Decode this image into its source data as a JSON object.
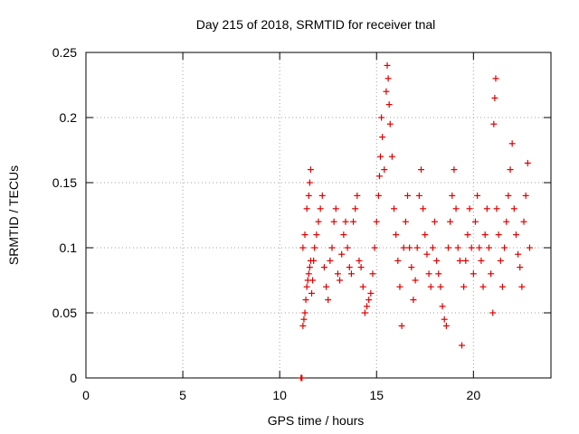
{
  "chart_data": {
    "type": "scatter",
    "title": "Day 215 of 2018, SRMTID for receiver tnal",
    "xlabel": "GPS time / hours",
    "ylabel": "SRMTID / TECUs",
    "xlim": [
      0,
      24
    ],
    "ylim": [
      0,
      0.25
    ],
    "xticks": [
      0,
      5,
      10,
      15,
      20
    ],
    "xtick_labels": [
      "0",
      "5",
      "10",
      "15",
      "20"
    ],
    "yticks": [
      0,
      0.05,
      0.1,
      0.15,
      0.2,
      0.25
    ],
    "ytick_labels": [
      "0",
      "0.05",
      "0.1",
      "0.15",
      "0.2",
      "0.25"
    ],
    "grid": true,
    "marker": "plus",
    "color": "#e00000",
    "x_range_of_data": [
      11.0,
      22.9
    ],
    "series": [
      {
        "name": "SRMTID",
        "points": [
          [
            11.1,
            0.0
          ],
          [
            11.15,
            0.0
          ],
          [
            11.2,
            0.04
          ],
          [
            11.25,
            0.045
          ],
          [
            11.3,
            0.05
          ],
          [
            11.35,
            0.06
          ],
          [
            11.4,
            0.07
          ],
          [
            11.45,
            0.075
          ],
          [
            11.5,
            0.08
          ],
          [
            11.55,
            0.085
          ],
          [
            11.6,
            0.09
          ],
          [
            11.2,
            0.1
          ],
          [
            11.3,
            0.11
          ],
          [
            11.4,
            0.13
          ],
          [
            11.5,
            0.14
          ],
          [
            11.55,
            0.15
          ],
          [
            11.6,
            0.16
          ],
          [
            11.65,
            0.065
          ],
          [
            11.7,
            0.075
          ],
          [
            11.75,
            0.09
          ],
          [
            11.8,
            0.1
          ],
          [
            11.9,
            0.11
          ],
          [
            12.0,
            0.12
          ],
          [
            12.1,
            0.13
          ],
          [
            12.2,
            0.14
          ],
          [
            12.3,
            0.085
          ],
          [
            12.4,
            0.07
          ],
          [
            12.5,
            0.06
          ],
          [
            12.6,
            0.09
          ],
          [
            12.7,
            0.1
          ],
          [
            12.8,
            0.12
          ],
          [
            12.9,
            0.13
          ],
          [
            13.0,
            0.08
          ],
          [
            13.1,
            0.075
          ],
          [
            13.2,
            0.095
          ],
          [
            13.3,
            0.11
          ],
          [
            13.4,
            0.12
          ],
          [
            13.5,
            0.1
          ],
          [
            13.6,
            0.085
          ],
          [
            13.7,
            0.08
          ],
          [
            13.8,
            0.12
          ],
          [
            13.9,
            0.13
          ],
          [
            14.0,
            0.14
          ],
          [
            14.1,
            0.09
          ],
          [
            14.2,
            0.085
          ],
          [
            14.3,
            0.07
          ],
          [
            14.4,
            0.05
          ],
          [
            14.5,
            0.055
          ],
          [
            14.6,
            0.06
          ],
          [
            14.7,
            0.065
          ],
          [
            14.8,
            0.08
          ],
          [
            14.9,
            0.1
          ],
          [
            15.0,
            0.12
          ],
          [
            15.1,
            0.14
          ],
          [
            15.15,
            0.155
          ],
          [
            15.2,
            0.17
          ],
          [
            15.25,
            0.2
          ],
          [
            15.3,
            0.185
          ],
          [
            15.4,
            0.16
          ],
          [
            15.5,
            0.22
          ],
          [
            15.55,
            0.24
          ],
          [
            15.6,
            0.23
          ],
          [
            15.65,
            0.21
          ],
          [
            15.7,
            0.195
          ],
          [
            15.8,
            0.17
          ],
          [
            15.9,
            0.13
          ],
          [
            16.0,
            0.11
          ],
          [
            16.1,
            0.09
          ],
          [
            16.2,
            0.07
          ],
          [
            16.3,
            0.04
          ],
          [
            16.4,
            0.1
          ],
          [
            16.5,
            0.12
          ],
          [
            16.6,
            0.14
          ],
          [
            16.7,
            0.1
          ],
          [
            16.8,
            0.085
          ],
          [
            16.9,
            0.06
          ],
          [
            17.0,
            0.075
          ],
          [
            17.1,
            0.1
          ],
          [
            17.2,
            0.14
          ],
          [
            17.3,
            0.16
          ],
          [
            17.4,
            0.13
          ],
          [
            17.5,
            0.11
          ],
          [
            17.6,
            0.095
          ],
          [
            17.7,
            0.08
          ],
          [
            17.8,
            0.07
          ],
          [
            17.9,
            0.1
          ],
          [
            18.0,
            0.12
          ],
          [
            18.1,
            0.09
          ],
          [
            18.2,
            0.08
          ],
          [
            18.3,
            0.07
          ],
          [
            18.4,
            0.055
          ],
          [
            18.5,
            0.045
          ],
          [
            18.6,
            0.04
          ],
          [
            18.7,
            0.1
          ],
          [
            18.8,
            0.12
          ],
          [
            18.9,
            0.14
          ],
          [
            19.0,
            0.16
          ],
          [
            19.1,
            0.13
          ],
          [
            19.2,
            0.1
          ],
          [
            19.3,
            0.09
          ],
          [
            19.4,
            0.025
          ],
          [
            19.5,
            0.07
          ],
          [
            19.6,
            0.09
          ],
          [
            19.7,
            0.11
          ],
          [
            19.8,
            0.13
          ],
          [
            19.9,
            0.1
          ],
          [
            20.0,
            0.08
          ],
          [
            20.1,
            0.12
          ],
          [
            20.2,
            0.14
          ],
          [
            20.3,
            0.1
          ],
          [
            20.4,
            0.09
          ],
          [
            20.5,
            0.07
          ],
          [
            20.6,
            0.11
          ],
          [
            20.7,
            0.13
          ],
          [
            20.8,
            0.1
          ],
          [
            20.9,
            0.08
          ],
          [
            21.0,
            0.05
          ],
          [
            21.05,
            0.195
          ],
          [
            21.1,
            0.215
          ],
          [
            21.15,
            0.23
          ],
          [
            21.2,
            0.13
          ],
          [
            21.3,
            0.11
          ],
          [
            21.4,
            0.09
          ],
          [
            21.5,
            0.07
          ],
          [
            21.6,
            0.1
          ],
          [
            21.7,
            0.12
          ],
          [
            21.8,
            0.14
          ],
          [
            21.9,
            0.16
          ],
          [
            22.0,
            0.18
          ],
          [
            22.1,
            0.13
          ],
          [
            22.2,
            0.11
          ],
          [
            22.3,
            0.095
          ],
          [
            22.4,
            0.085
          ],
          [
            22.5,
            0.07
          ],
          [
            22.6,
            0.12
          ],
          [
            22.7,
            0.14
          ],
          [
            22.8,
            0.165
          ],
          [
            22.9,
            0.1
          ]
        ]
      }
    ]
  }
}
